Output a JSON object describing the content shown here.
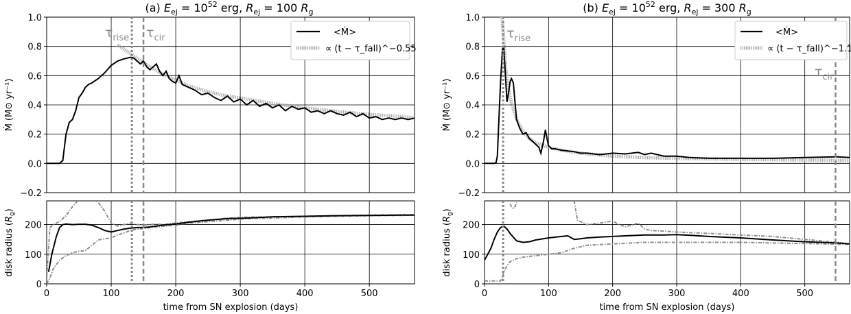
{
  "chart_data": [
    {
      "panel": "a",
      "type": "line",
      "title": "(a) E_ej = 10^52 erg, R_ej = 100 R_g",
      "title_parts": {
        "prefix": "(a) ",
        "e_sym": "E",
        "e_sub": "ej",
        "e_mid": " = 10",
        "e_exp": "52",
        "e_unit": " erg, ",
        "r_sym": "R",
        "r_sub": "ej",
        "r_mid": " = 100 ",
        "r_unit": "R",
        "r_unit_sub": "g"
      },
      "xlabel": "time from SN explosion (days)",
      "xlim": [
        0,
        570
      ],
      "xticks": [
        0,
        100,
        200,
        300,
        400,
        500
      ],
      "grid": true,
      "upper": {
        "ylabel": "Ṁ (M⊙ yr⁻¹)",
        "ylim": [
          -0.2,
          1.0
        ],
        "yticks": [
          "−0.2",
          "0.0",
          "0.2",
          "0.4",
          "0.6",
          "0.8",
          "1.0"
        ],
        "ytick_values": [
          -0.2,
          0.0,
          0.2,
          0.4,
          0.6,
          0.8,
          1.0
        ],
        "legend": {
          "placement": "top-right",
          "entries": [
            "<Ṁ>",
            "∝ (t − τ_fall)^−0.55"
          ]
        },
        "series": [
          {
            "label": "<Ṁ>",
            "style": "solid-black",
            "x": [
              0,
              10,
              20,
              25,
              30,
              35,
              40,
              45,
              50,
              55,
              60,
              65,
              70,
              80,
              90,
              100,
              110,
              120,
              125,
              130,
              135,
              140,
              145,
              150,
              155,
              160,
              165,
              170,
              175,
              180,
              185,
              190,
              195,
              200,
              205,
              210,
              215,
              220,
              230,
              240,
              250,
              260,
              270,
              280,
              290,
              300,
              310,
              320,
              330,
              340,
              350,
              360,
              370,
              380,
              390,
              400,
              410,
              420,
              430,
              440,
              450,
              460,
              470,
              480,
              490,
              500,
              510,
              520,
              530,
              540,
              550,
              560,
              570
            ],
            "y": [
              0.0,
              0.0,
              0.0,
              0.02,
              0.2,
              0.28,
              0.3,
              0.36,
              0.45,
              0.48,
              0.52,
              0.54,
              0.55,
              0.58,
              0.62,
              0.67,
              0.7,
              0.715,
              0.72,
              0.725,
              0.72,
              0.7,
              0.68,
              0.7,
              0.66,
              0.64,
              0.66,
              0.68,
              0.63,
              0.6,
              0.63,
              0.58,
              0.56,
              0.55,
              0.6,
              0.54,
              0.53,
              0.52,
              0.5,
              0.47,
              0.48,
              0.45,
              0.43,
              0.46,
              0.42,
              0.44,
              0.4,
              0.43,
              0.39,
              0.41,
              0.38,
              0.4,
              0.36,
              0.39,
              0.37,
              0.38,
              0.35,
              0.36,
              0.34,
              0.36,
              0.34,
              0.33,
              0.35,
              0.32,
              0.34,
              0.31,
              0.32,
              0.3,
              0.31,
              0.3,
              0.31,
              0.3,
              0.31
            ]
          },
          {
            "label": "∝ (t − τ_fall)^−0.55",
            "style": "dotted-gray",
            "x": [
              110,
              120,
              130,
              140,
              150,
              160,
              180,
              200,
              220,
              250,
              280,
              310,
              350,
              400,
              450,
              500,
              550,
              570
            ],
            "y": [
              0.81,
              0.78,
              0.75,
              0.72,
              0.69,
              0.66,
              0.61,
              0.57,
              0.53,
              0.49,
              0.46,
              0.44,
              0.41,
              0.38,
              0.355,
              0.335,
              0.32,
              0.31
            ]
          }
        ],
        "annotations": [
          {
            "text": "τ",
            "sub": "rise",
            "x": 132,
            "style": "dotted-gray"
          },
          {
            "text": "τ",
            "sub": "cir",
            "x": 150,
            "style": "dashed-gray"
          }
        ]
      },
      "lower": {
        "ylabel": "disk radius (R_g)",
        "ylabel_parts": {
          "prefix": "disk radius (",
          "sym": "R",
          "sub": "g",
          "suffix": ")"
        },
        "ylim": [
          0,
          280
        ],
        "yticks": [
          "0",
          "100",
          "200"
        ],
        "ytick_values": [
          0,
          100,
          200
        ],
        "series": [
          {
            "label": "disk radius",
            "style": "solid-black",
            "x": [
              3,
              8,
              15,
              20,
              25,
              30,
              40,
              50,
              60,
              70,
              80,
              90,
              100,
              110,
              120,
              130,
              140,
              150,
              160,
              180,
              200,
              220,
              250,
              280,
              310,
              350,
              400,
              450,
              500,
              550,
              570
            ],
            "y": [
              40,
              100,
              160,
              190,
              200,
              202,
              200,
              201,
              201,
              198,
              190,
              180,
              175,
              180,
              185,
              188,
              190,
              190,
              192,
              198,
              202,
              208,
              215,
              220,
              222,
              226,
              228,
              230,
              231,
              232,
              232
            ]
          },
          {
            "label": "disk radius outer",
            "style": "dashdot-gray",
            "x": [
              0,
              5,
              10,
              20,
              30,
              40,
              50,
              60,
              70,
              80,
              90,
              100,
              110,
              120,
              130,
              140,
              150,
              160,
              170,
              180,
              200,
              220,
              250,
              280,
              310,
              350,
              400,
              450,
              500,
              550,
              570
            ],
            "y": [
              20,
              190,
              200,
              210,
              230,
              260,
              285,
              300,
              295,
              275,
              245,
              205,
              195,
              200,
              205,
              200,
              198,
              200,
              202,
              200,
              205,
              210,
              215,
              222,
              225,
              226,
              228,
              230,
              232,
              233,
              234
            ]
          },
          {
            "label": "disk radius inner",
            "style": "dashdot-gray",
            "x": [
              0,
              5,
              10,
              20,
              30,
              40,
              50,
              60,
              70,
              80,
              90,
              100,
              110,
              120,
              130,
              140,
              150,
              160,
              180,
              200,
              220,
              250,
              280,
              310,
              350,
              400,
              450,
              500,
              550,
              570
            ],
            "y": [
              0,
              20,
              50,
              80,
              95,
              105,
              110,
              112,
              130,
              148,
              152,
              155,
              165,
              172,
              180,
              185,
              186,
              190,
              194,
              198,
              205,
              210,
              215,
              220,
              222,
              226,
              228,
              230,
              231,
              232
            ]
          }
        ]
      }
    },
    {
      "panel": "b",
      "type": "line",
      "title": "(b) E_ej = 10^52 erg, R_ej = 300 R_g",
      "title_parts": {
        "prefix": "(b) ",
        "e_sym": "E",
        "e_sub": "ej",
        "e_mid": " = 10",
        "e_exp": "52",
        "e_unit": " erg, ",
        "r_sym": "R",
        "r_sub": "ej",
        "r_mid": " = 300 ",
        "r_unit": "R",
        "r_unit_sub": "g"
      },
      "xlabel": "time from SN explosion (days)",
      "xlim": [
        0,
        570
      ],
      "xticks": [
        0,
        100,
        200,
        300,
        400,
        500
      ],
      "grid": true,
      "upper": {
        "ylabel": "Ṁ (M⊙ yr⁻¹)",
        "ylim": [
          -0.2,
          1.0
        ],
        "yticks": [
          "−0.2",
          "0.0",
          "0.2",
          "0.4",
          "0.6",
          "0.8",
          "1.0"
        ],
        "ytick_values": [
          -0.2,
          0.0,
          0.2,
          0.4,
          0.6,
          0.8,
          1.0
        ],
        "legend": {
          "placement": "top-right",
          "entries": [
            "<Ṁ>",
            "∝ (t − τ_fall)^−1.1"
          ]
        },
        "series": [
          {
            "label": "<Ṁ>",
            "style": "solid-black",
            "x": [
              0,
              10,
              15,
              18,
              20,
              22,
              25,
              28,
              30,
              32,
              35,
              38,
              40,
              42,
              45,
              48,
              50,
              55,
              60,
              65,
              70,
              75,
              80,
              85,
              88,
              92,
              95,
              98,
              100,
              105,
              110,
              120,
              130,
              140,
              150,
              160,
              170,
              180,
              200,
              220,
              240,
              250,
              260,
              280,
              300,
              320,
              350,
              400,
              450,
              500,
              550,
              570
            ],
            "y": [
              0.0,
              0.0,
              0.0,
              0.005,
              0.05,
              0.25,
              0.55,
              0.78,
              0.8,
              0.65,
              0.42,
              0.5,
              0.56,
              0.58,
              0.55,
              0.4,
              0.3,
              0.24,
              0.2,
              0.21,
              0.17,
              0.15,
              0.13,
              0.11,
              0.07,
              0.15,
              0.23,
              0.16,
              0.12,
              0.1,
              0.1,
              0.09,
              0.085,
              0.08,
              0.07,
              0.07,
              0.065,
              0.06,
              0.07,
              0.065,
              0.075,
              0.06,
              0.07,
              0.05,
              0.05,
              0.04,
              0.035,
              0.035,
              0.035,
              0.04,
              0.045,
              0.04
            ]
          },
          {
            "label": "∝ (t − τ_fall)^−1.1",
            "style": "dotted-gray",
            "x": [
              25,
              27,
              29,
              31,
              33,
              36,
              40,
              45,
              50,
              60,
              70,
              80,
              100,
              120,
              150,
              200,
              250,
              300,
              400,
              500,
              570
            ],
            "y": [
              1.1,
              1.0,
              0.9,
              0.78,
              0.65,
              0.55,
              0.45,
              0.37,
              0.3,
              0.22,
              0.17,
              0.14,
              0.11,
              0.09,
              0.07,
              0.05,
              0.04,
              0.035,
              0.028,
              0.023,
              0.02
            ]
          }
        ],
        "annotations": [
          {
            "text": "τ",
            "sub": "rise",
            "x": 29,
            "style": "dotted-gray"
          },
          {
            "text": "τ",
            "sub": "cir",
            "x": 548,
            "style": "dashed-gray"
          }
        ]
      },
      "lower": {
        "ylabel": "disk radius (R_g)",
        "ylabel_parts": {
          "prefix": "disk radius (",
          "sym": "R",
          "sub": "g",
          "suffix": ")"
        },
        "ylim": [
          0,
          280
        ],
        "yticks": [
          "0",
          "100",
          "200"
        ],
        "ytick_values": [
          0,
          100,
          200
        ],
        "series": [
          {
            "label": "disk radius",
            "style": "solid-black",
            "x": [
              0,
              5,
              10,
              15,
              20,
              25,
              30,
              35,
              40,
              50,
              60,
              70,
              80,
              100,
              120,
              130,
              140,
              150,
              160,
              180,
              200,
              220,
              250,
              280,
              300,
              320,
              350,
              400,
              450,
              500,
              550,
              570
            ],
            "y": [
              80,
              100,
              120,
              150,
              175,
              190,
              195,
              185,
              170,
              145,
              140,
              142,
              148,
              155,
              160,
              162,
              150,
              152,
              155,
              158,
              160,
              162,
              165,
              165,
              166,
              164,
              160,
              155,
              148,
              142,
              138,
              135
            ]
          },
          {
            "label": "disk radius outer",
            "style": "dashdot-gray",
            "x": [
              40,
              42,
              45,
              48,
              50
            ],
            "y": [
              270,
              260,
              255,
              262,
              275
            ]
          },
          {
            "label": "disk radius outer 2",
            "style": "dashdot-gray",
            "x": [
              140,
              145,
              150,
              160,
              180,
              200,
              210,
              220,
              230,
              240,
              250,
              260,
              280,
              300,
              350,
              400,
              450,
              500,
              550,
              570
            ],
            "y": [
              280,
              215,
              210,
              200,
              205,
              212,
              200,
              193,
              198,
              205,
              185,
              180,
              178,
              175,
              170,
              165,
              160,
              150,
              140,
              135
            ]
          },
          {
            "label": "disk radius inner",
            "style": "dashdot-gray",
            "x": [
              0,
              10,
              20,
              25,
              28,
              30,
              35,
              40,
              50,
              60,
              80,
              100,
              120,
              140,
              160,
              200,
              250,
              300,
              350,
              400,
              450,
              500,
              550,
              570
            ],
            "y": [
              10,
              10,
              10,
              10,
              20,
              40,
              60,
              75,
              85,
              90,
              95,
              100,
              105,
              120,
              130,
              135,
              140,
              140,
              140,
              140,
              138,
              136,
              134,
              133
            ]
          }
        ]
      }
    }
  ]
}
